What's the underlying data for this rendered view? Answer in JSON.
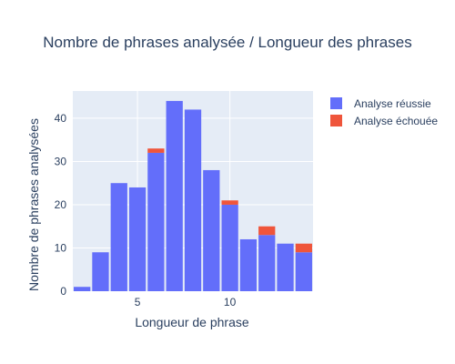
{
  "chart_data": {
    "type": "bar",
    "barmode": "stack",
    "title": "Nombre de phrases analysée / Longueur des phrases",
    "xlabel": "Longueur de phrase",
    "ylabel": "Nombre de phrases analysées",
    "x": [
      2,
      3,
      4,
      5,
      6,
      7,
      8,
      9,
      10,
      11,
      12,
      13,
      14
    ],
    "xlim": [
      1.5,
      14.5
    ],
    "ylim": [
      0,
      46.3
    ],
    "xticks": [
      5,
      10
    ],
    "yticks": [
      0,
      10,
      20,
      30,
      40
    ],
    "grid": true,
    "legend_position": "right",
    "series": [
      {
        "name": "Analyse réussie",
        "color": "#636efa",
        "values": [
          1,
          9,
          25,
          24,
          32,
          44,
          42,
          28,
          20,
          12,
          13,
          11,
          9
        ]
      },
      {
        "name": "Analyse échouée",
        "color": "#ef553b",
        "values": [
          0,
          0,
          0,
          0,
          1,
          0,
          0,
          0,
          1,
          0,
          2,
          0,
          2
        ]
      }
    ],
    "plot_background": "#e5ecf6"
  }
}
